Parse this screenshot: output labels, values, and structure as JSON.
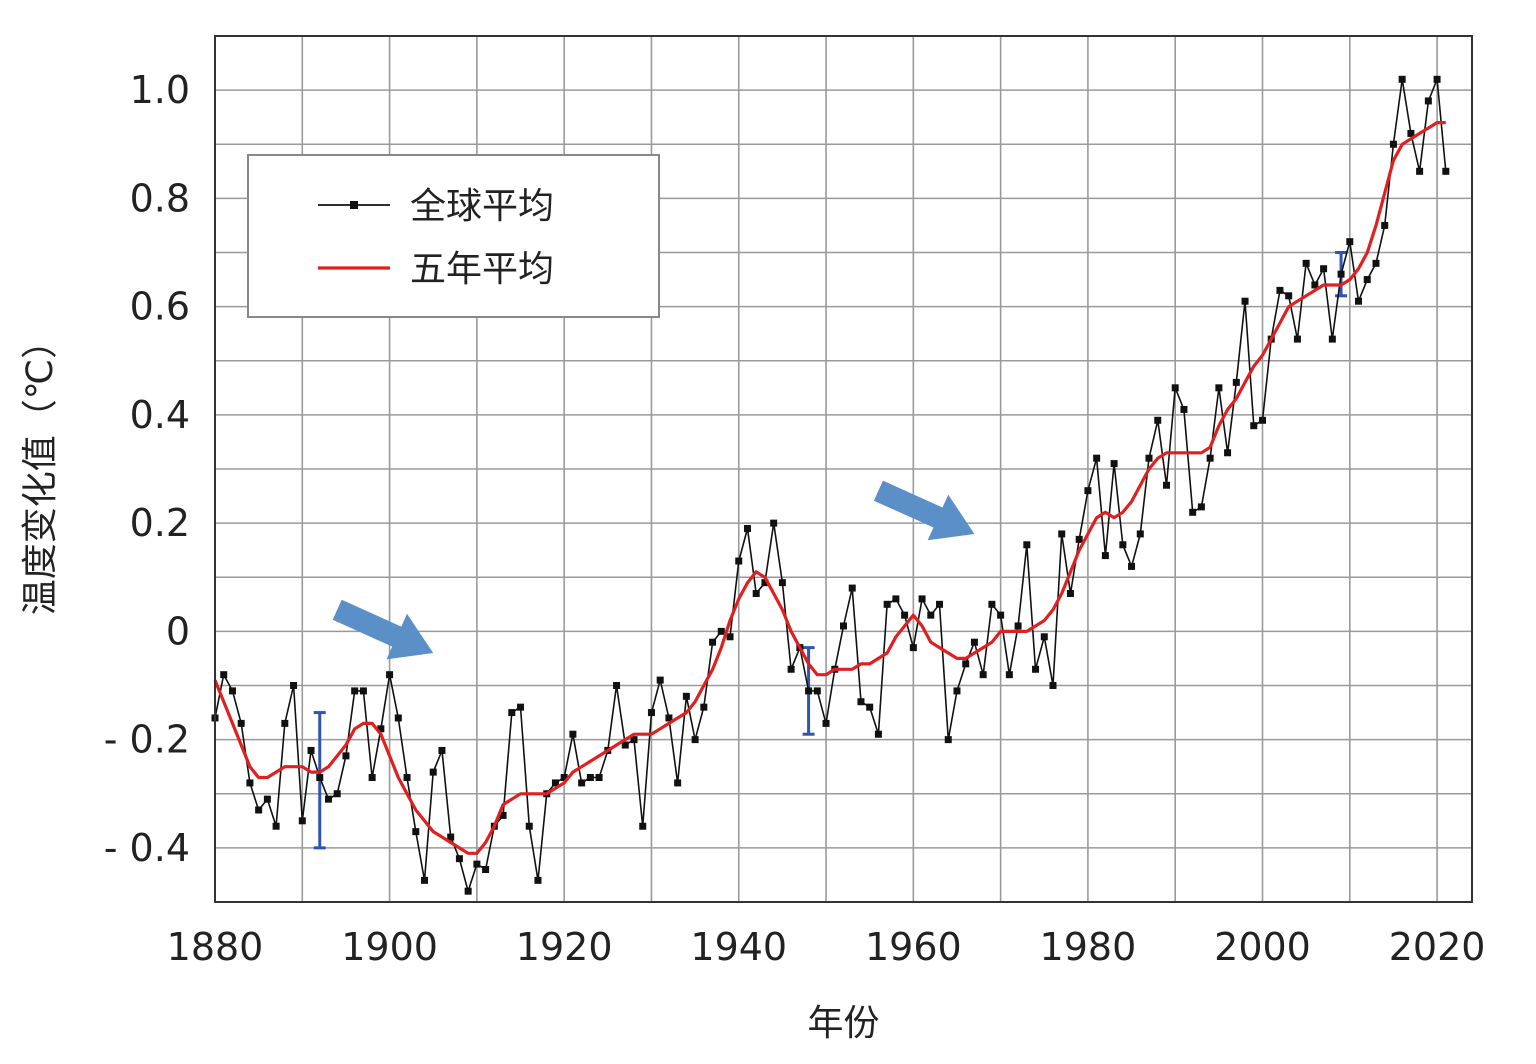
{
  "chart_data": {
    "type": "line",
    "xlabel": "年份",
    "ylabel": "温度变化值（℃）",
    "xlim": [
      1880,
      2024
    ],
    "ylim": [
      -0.5,
      1.1
    ],
    "x_ticks": [
      1880,
      1900,
      1920,
      1940,
      1960,
      1980,
      2000,
      2020
    ],
    "y_ticks": [
      {
        "value": 1.0,
        "label": "1.0"
      },
      {
        "value": 0.8,
        "label": "0.8"
      },
      {
        "value": 0.6,
        "label": "0.6"
      },
      {
        "value": 0.4,
        "label": "0.4"
      },
      {
        "value": 0.2,
        "label": "0.2"
      },
      {
        "value": 0,
        "label": "0"
      },
      {
        "value": -0.2,
        "label": "- 0.2"
      },
      {
        "value": -0.4,
        "label": "- 0.4"
      }
    ],
    "grid": true,
    "legend_position": "top-left",
    "series": [
      {
        "name": "全球平均",
        "color": "#111111",
        "marker": "square",
        "x": [
          1880,
          1881,
          1882,
          1883,
          1884,
          1885,
          1886,
          1887,
          1888,
          1889,
          1890,
          1891,
          1892,
          1893,
          1894,
          1895,
          1896,
          1897,
          1898,
          1899,
          1900,
          1901,
          1902,
          1903,
          1904,
          1905,
          1906,
          1907,
          1908,
          1909,
          1910,
          1911,
          1912,
          1913,
          1914,
          1915,
          1916,
          1917,
          1918,
          1919,
          1920,
          1921,
          1922,
          1923,
          1924,
          1925,
          1926,
          1927,
          1928,
          1929,
          1930,
          1931,
          1932,
          1933,
          1934,
          1935,
          1936,
          1937,
          1938,
          1939,
          1940,
          1941,
          1942,
          1943,
          1944,
          1945,
          1946,
          1947,
          1948,
          1949,
          1950,
          1951,
          1952,
          1953,
          1954,
          1955,
          1956,
          1957,
          1958,
          1959,
          1960,
          1961,
          1962,
          1963,
          1964,
          1965,
          1966,
          1967,
          1968,
          1969,
          1970,
          1971,
          1972,
          1973,
          1974,
          1975,
          1976,
          1977,
          1978,
          1979,
          1980,
          1981,
          1982,
          1983,
          1984,
          1985,
          1986,
          1987,
          1988,
          1989,
          1990,
          1991,
          1992,
          1993,
          1994,
          1995,
          1996,
          1997,
          1998,
          1999,
          2000,
          2001,
          2002,
          2003,
          2004,
          2005,
          2006,
          2007,
          2008,
          2009,
          2010,
          2011,
          2012,
          2013,
          2014,
          2015,
          2016,
          2017,
          2018,
          2019,
          2020,
          2021
        ],
        "values": [
          -0.16,
          -0.08,
          -0.11,
          -0.17,
          -0.28,
          -0.33,
          -0.31,
          -0.36,
          -0.17,
          -0.1,
          -0.35,
          -0.22,
          -0.27,
          -0.31,
          -0.3,
          -0.23,
          -0.11,
          -0.11,
          -0.27,
          -0.18,
          -0.08,
          -0.16,
          -0.27,
          -0.37,
          -0.46,
          -0.26,
          -0.22,
          -0.38,
          -0.42,
          -0.48,
          -0.43,
          -0.44,
          -0.36,
          -0.34,
          -0.15,
          -0.14,
          -0.36,
          -0.46,
          -0.3,
          -0.28,
          -0.27,
          -0.19,
          -0.28,
          -0.27,
          -0.27,
          -0.22,
          -0.1,
          -0.21,
          -0.2,
          -0.36,
          -0.15,
          -0.09,
          -0.16,
          -0.28,
          -0.12,
          -0.2,
          -0.14,
          -0.02,
          0.0,
          -0.01,
          0.13,
          0.19,
          0.07,
          0.09,
          0.2,
          0.09,
          -0.07,
          -0.03,
          -0.11,
          -0.11,
          -0.17,
          -0.07,
          0.01,
          0.08,
          -0.13,
          -0.14,
          -0.19,
          0.05,
          0.06,
          0.03,
          -0.03,
          0.06,
          0.03,
          0.05,
          -0.2,
          -0.11,
          -0.06,
          -0.02,
          -0.08,
          0.05,
          0.03,
          -0.08,
          0.01,
          0.16,
          -0.07,
          -0.01,
          -0.1,
          0.18,
          0.07,
          0.17,
          0.26,
          0.32,
          0.14,
          0.31,
          0.16,
          0.12,
          0.18,
          0.32,
          0.39,
          0.27,
          0.45,
          0.41,
          0.22,
          0.23,
          0.32,
          0.45,
          0.33,
          0.46,
          0.61,
          0.38,
          0.39,
          0.54,
          0.63,
          0.62,
          0.54,
          0.68,
          0.64,
          0.67,
          0.54,
          0.66,
          0.72,
          0.61,
          0.65,
          0.68,
          0.75,
          0.9,
          1.02,
          0.92,
          0.85,
          0.98,
          1.02,
          0.85
        ]
      },
      {
        "name": "五年平均",
        "color": "#e02020",
        "x": [
          1880,
          1881,
          1882,
          1883,
          1884,
          1885,
          1886,
          1887,
          1888,
          1889,
          1890,
          1891,
          1892,
          1893,
          1894,
          1895,
          1896,
          1897,
          1898,
          1899,
          1900,
          1901,
          1902,
          1903,
          1904,
          1905,
          1906,
          1907,
          1908,
          1909,
          1910,
          1911,
          1912,
          1913,
          1914,
          1915,
          1916,
          1917,
          1918,
          1919,
          1920,
          1921,
          1922,
          1923,
          1924,
          1925,
          1926,
          1927,
          1928,
          1929,
          1930,
          1931,
          1932,
          1933,
          1934,
          1935,
          1936,
          1937,
          1938,
          1939,
          1940,
          1941,
          1942,
          1943,
          1944,
          1945,
          1946,
          1947,
          1948,
          1949,
          1950,
          1951,
          1952,
          1953,
          1954,
          1955,
          1956,
          1957,
          1958,
          1959,
          1960,
          1961,
          1962,
          1963,
          1964,
          1965,
          1966,
          1967,
          1968,
          1969,
          1970,
          1971,
          1972,
          1973,
          1974,
          1975,
          1976,
          1977,
          1978,
          1979,
          1980,
          1981,
          1982,
          1983,
          1984,
          1985,
          1986,
          1987,
          1988,
          1989,
          1990,
          1991,
          1992,
          1993,
          1994,
          1995,
          1996,
          1997,
          1998,
          1999,
          2000,
          2001,
          2002,
          2003,
          2004,
          2005,
          2006,
          2007,
          2008,
          2009,
          2010,
          2011,
          2012,
          2013,
          2014,
          2015,
          2016,
          2017,
          2018,
          2019,
          2020,
          2021
        ],
        "values": [
          -0.09,
          -0.13,
          -0.17,
          -0.21,
          -0.25,
          -0.27,
          -0.27,
          -0.26,
          -0.25,
          -0.25,
          -0.25,
          -0.26,
          -0.26,
          -0.25,
          -0.23,
          -0.21,
          -0.18,
          -0.17,
          -0.17,
          -0.19,
          -0.23,
          -0.27,
          -0.3,
          -0.33,
          -0.35,
          -0.37,
          -0.38,
          -0.39,
          -0.4,
          -0.41,
          -0.41,
          -0.39,
          -0.36,
          -0.32,
          -0.31,
          -0.3,
          -0.3,
          -0.3,
          -0.3,
          -0.29,
          -0.28,
          -0.26,
          -0.25,
          -0.24,
          -0.23,
          -0.22,
          -0.21,
          -0.2,
          -0.19,
          -0.19,
          -0.19,
          -0.18,
          -0.17,
          -0.16,
          -0.15,
          -0.13,
          -0.1,
          -0.07,
          -0.03,
          0.02,
          0.06,
          0.09,
          0.11,
          0.1,
          0.07,
          0.04,
          0.0,
          -0.03,
          -0.06,
          -0.08,
          -0.08,
          -0.07,
          -0.07,
          -0.07,
          -0.06,
          -0.06,
          -0.05,
          -0.04,
          -0.01,
          0.01,
          0.03,
          0.01,
          -0.02,
          -0.03,
          -0.04,
          -0.05,
          -0.05,
          -0.04,
          -0.03,
          -0.02,
          0.0,
          0.0,
          0.0,
          0.0,
          0.01,
          0.02,
          0.04,
          0.07,
          0.11,
          0.15,
          0.18,
          0.21,
          0.22,
          0.21,
          0.22,
          0.24,
          0.27,
          0.3,
          0.32,
          0.33,
          0.33,
          0.33,
          0.33,
          0.33,
          0.34,
          0.38,
          0.41,
          0.43,
          0.46,
          0.49,
          0.51,
          0.54,
          0.57,
          0.6,
          0.61,
          0.62,
          0.63,
          0.64,
          0.64,
          0.64,
          0.65,
          0.67,
          0.7,
          0.75,
          0.81,
          0.87,
          0.9,
          0.91,
          0.92,
          0.93,
          0.94,
          0.94
        ]
      }
    ],
    "error_bars": [
      {
        "x": 1892,
        "low": -0.4,
        "high": -0.15
      },
      {
        "x": 1948,
        "low": -0.19,
        "high": -0.03
      },
      {
        "x": 2009,
        "low": 0.62,
        "high": 0.7
      }
    ],
    "annotations": [
      {
        "type": "arrow",
        "from": [
          1894,
          0.04
        ],
        "to": [
          1905,
          -0.04
        ],
        "color": "#5b8fc7"
      },
      {
        "type": "arrow",
        "from": [
          1956,
          0.26
        ],
        "to": [
          1967,
          0.18
        ],
        "color": "#5b8fc7"
      }
    ]
  },
  "colors": {
    "grid": "#9a9a9a",
    "frame": "#333333",
    "error_bar": "#2f55b0",
    "legend_border": "#888888"
  }
}
